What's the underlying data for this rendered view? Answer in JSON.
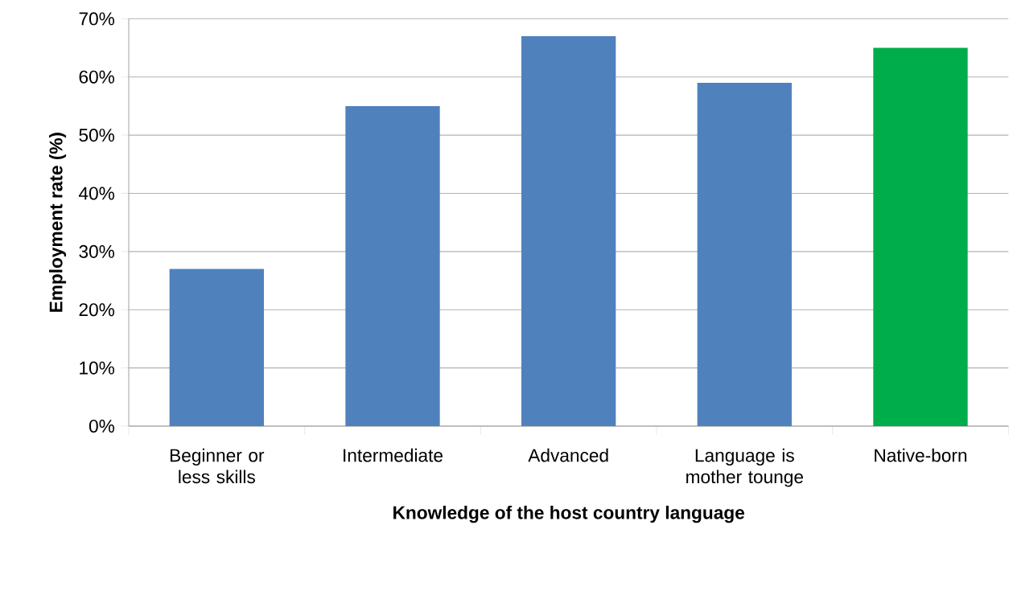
{
  "chart_data": {
    "type": "bar",
    "xlabel": "Knowledge of the host country language",
    "ylabel": "Employment rate (%)",
    "categories": [
      "Beginner or less skills",
      "Intermediate",
      "Advanced",
      "Language is mother tounge",
      "Native-born"
    ],
    "values": [
      27,
      55,
      67,
      59,
      65
    ],
    "colors": [
      "#4f81bd",
      "#4f81bd",
      "#4f81bd",
      "#4f81bd",
      "#00ad4b"
    ],
    "ylim": [
      0,
      70
    ],
    "yticks": [
      {
        "value": 0,
        "label": "0%"
      },
      {
        "value": 10,
        "label": "10%"
      },
      {
        "value": 20,
        "label": "20%"
      },
      {
        "value": 30,
        "label": "30%"
      },
      {
        "value": 40,
        "label": "40%"
      },
      {
        "value": 50,
        "label": "50%"
      },
      {
        "value": 60,
        "label": "60%"
      },
      {
        "value": 70,
        "label": "70%"
      }
    ],
    "grid": "y"
  }
}
